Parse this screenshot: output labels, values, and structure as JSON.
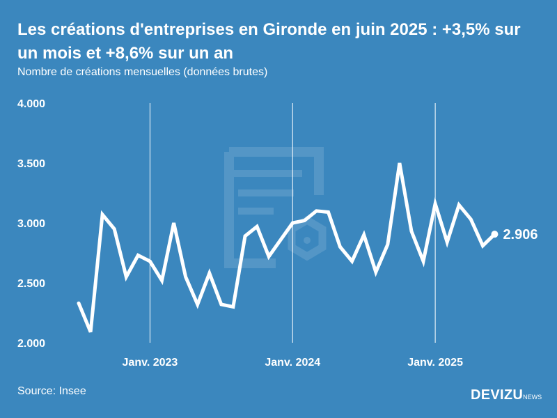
{
  "title": "Les créations d'entreprises en Gironde en juin 2025 : +3,5% sur un mois et +8,6% sur un an",
  "subtitle": "Nombre de créations mensuelles (données brutes)",
  "source": "Source: Insee",
  "brand": {
    "main": "DEVIZU",
    "suffix": "NEWS"
  },
  "colors": {
    "background": "#3b87be",
    "line": "#ffffff",
    "watermark": "#5496c6"
  },
  "chart_data": {
    "type": "line",
    "title": "Les créations d'entreprises en Gironde en juin 2025 : +3,5% sur un mois et +8,6% sur un an",
    "subtitle": "Nombre de créations mensuelles (données brutes)",
    "xlabel": "",
    "ylabel": "",
    "ylim": [
      2000,
      4000
    ],
    "yticks": [
      2000,
      2500,
      3000,
      3500,
      4000
    ],
    "ytick_labels": [
      "2.000",
      "2.500",
      "3.000",
      "3.500",
      "4.000"
    ],
    "xticks": [
      "2023-01",
      "2024-01",
      "2025-01"
    ],
    "xtick_labels": [
      "Janv. 2023",
      "Janv. 2024",
      "Janv. 2025"
    ],
    "x_gridlines": true,
    "last_value_label": "2.906",
    "x": [
      "2022-07",
      "2022-08",
      "2022-09",
      "2022-10",
      "2022-11",
      "2022-12",
      "2023-01",
      "2023-02",
      "2023-03",
      "2023-04",
      "2023-05",
      "2023-06",
      "2023-07",
      "2023-08",
      "2023-09",
      "2023-10",
      "2023-11",
      "2023-12",
      "2024-01",
      "2024-02",
      "2024-03",
      "2024-04",
      "2024-05",
      "2024-06",
      "2024-07",
      "2024-08",
      "2024-09",
      "2024-10",
      "2024-11",
      "2024-12",
      "2025-01",
      "2025-02",
      "2025-03",
      "2025-04",
      "2025-05",
      "2025-06"
    ],
    "series": [
      {
        "values": [
          2330,
          2090,
          3070,
          2950,
          2550,
          2730,
          2680,
          2520,
          3000,
          2550,
          2320,
          2580,
          2320,
          2300,
          2890,
          2970,
          2720,
          2860,
          3000,
          3020,
          3100,
          3090,
          2800,
          2680,
          2900,
          2590,
          2820,
          3500,
          2930,
          2680,
          3160,
          2840,
          3150,
          3030,
          2810,
          2906
        ]
      }
    ]
  }
}
